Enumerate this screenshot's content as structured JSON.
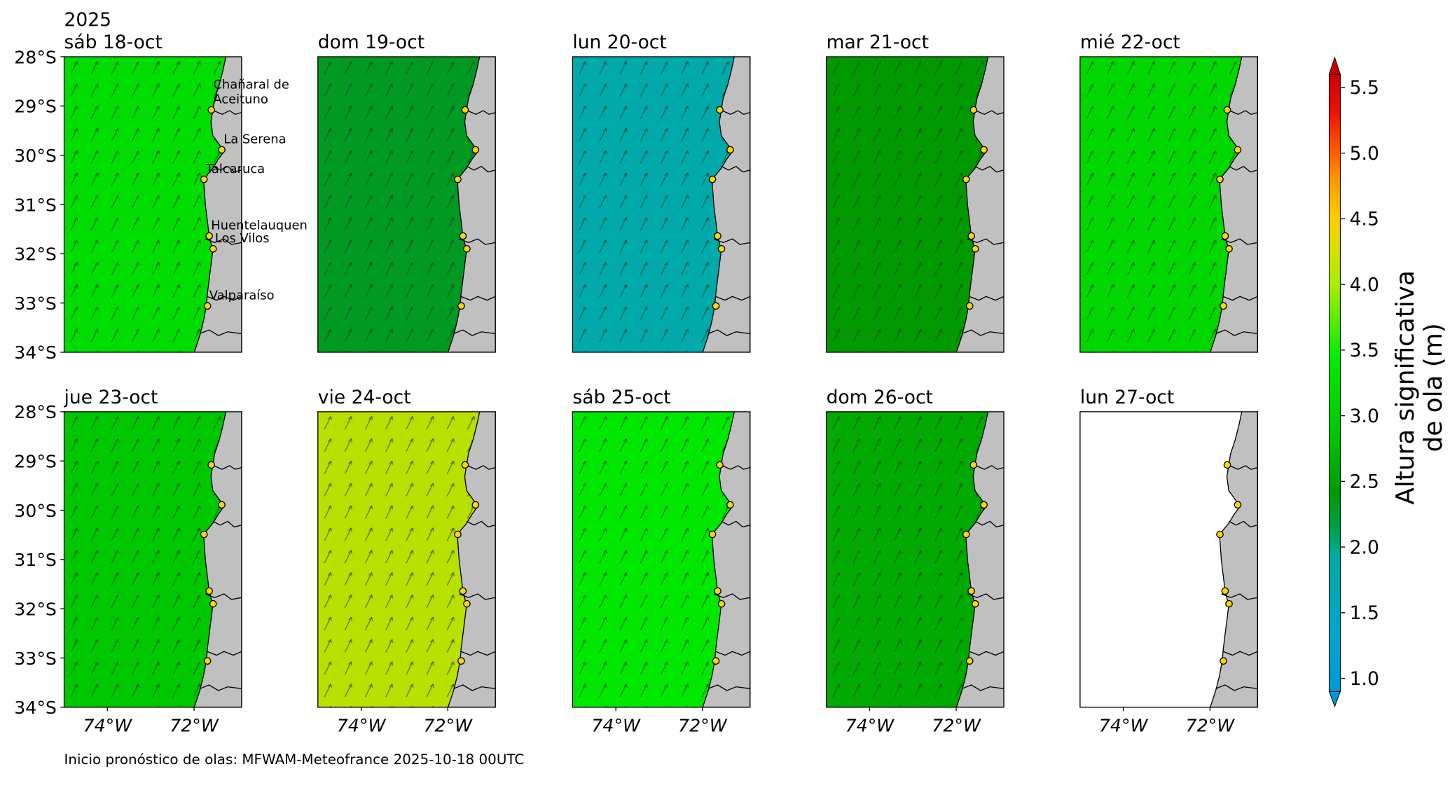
{
  "year": "2025",
  "panels": [
    {
      "title": "sáb 18-oct",
      "color": "#00dd00"
    },
    {
      "title": "dom 19-oct",
      "color": "#009a22"
    },
    {
      "title": "lun 20-oct",
      "color": "#00aaaa"
    },
    {
      "title": "mar 21-oct",
      "color": "#009a00"
    },
    {
      "title": "mié 22-oct",
      "color": "#00d800"
    },
    {
      "title": "jue 23-oct",
      "color": "#00c800"
    },
    {
      "title": "vie 24-oct",
      "color": "#b8e000"
    },
    {
      "title": "sáb 25-oct",
      "color": "#00e800"
    },
    {
      "title": "dom 26-oct",
      "color": "#00aa00"
    },
    {
      "title": "lun 27-oct",
      "color": "#ffffff"
    }
  ],
  "xlim": [
    -75,
    -70.9
  ],
  "ylim": [
    -34,
    -28
  ],
  "lat_ticks": [
    {
      "value": -28,
      "label": "28°S"
    },
    {
      "value": -29,
      "label": "29°S"
    },
    {
      "value": -30,
      "label": "30°S"
    },
    {
      "value": -31,
      "label": "31°S"
    },
    {
      "value": -32,
      "label": "32°S"
    },
    {
      "value": -33,
      "label": "33°S"
    },
    {
      "value": -34,
      "label": "34°S"
    }
  ],
  "lon_ticks": [
    {
      "value": -74,
      "label": "74°W"
    },
    {
      "value": -72,
      "label": "72°W"
    }
  ],
  "places": [
    {
      "name": [
        "Chañaral de",
        "Aceituno"
      ],
      "lat": -29.08,
      "lon": -71.6
    },
    {
      "name": [
        "La Serena"
      ],
      "lat": -29.89,
      "lon": -71.36
    },
    {
      "name": [
        "Talcaruca"
      ],
      "lat": -30.49,
      "lon": -71.77
    },
    {
      "name": [
        "Huentelauquen"
      ],
      "lat": -31.64,
      "lon": -71.65
    },
    {
      "name": [
        "Los Vilos"
      ],
      "lat": -31.9,
      "lon": -71.56
    },
    {
      "name": [
        "Valparaíso"
      ],
      "lat": -33.06,
      "lon": -71.69
    }
  ],
  "colorbar": {
    "label": [
      "Altura significativa",
      "de ola (m)"
    ],
    "clim": [
      0.9,
      5.6
    ],
    "ticks": [
      {
        "value": 1,
        "label": "1.0"
      },
      1.5,
      {
        "value": 2,
        "label": "2.0"
      },
      2.5,
      {
        "value": 3,
        "label": "3.0"
      },
      3.5,
      {
        "value": 4,
        "label": "4.0"
      },
      4.5,
      {
        "value": 5,
        "label": "5.0"
      },
      5.5
    ]
  },
  "footer": "Inicio pronóstico de olas: MFWAM-Meteofrance 2025-10-18 00UTC"
}
